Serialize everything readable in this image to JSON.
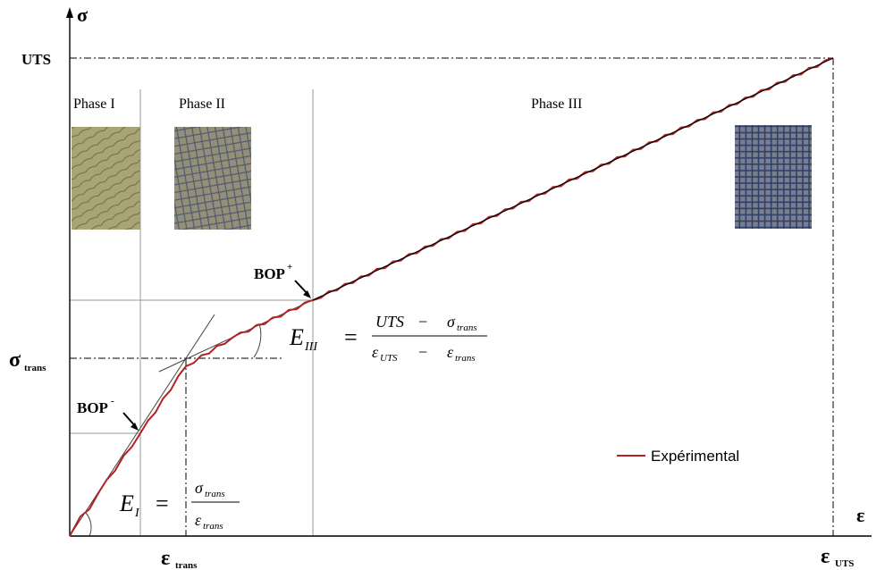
{
  "axes": {
    "y_symbol": "σ",
    "x_symbol": "ε"
  },
  "levels": {
    "uts": "UTS",
    "sigma_trans": {
      "symbol": "σ",
      "sub": "trans"
    },
    "eps_trans": {
      "symbol": "ε",
      "sub": "trans"
    },
    "eps_uts": {
      "symbol": "ε",
      "sub": "UTS"
    }
  },
  "phases": [
    "Phase I",
    "Phase II",
    "Phase III"
  ],
  "points": {
    "bop_plus": {
      "label": "BOP",
      "sup": "+"
    },
    "bop_minus": {
      "label": "BOP",
      "sup": "-"
    }
  },
  "formulas": {
    "e3": {
      "lhs": "E",
      "lhs_sub": "III",
      "eq": "=",
      "num_a": "UTS",
      "minus": "−",
      "num_b": "σ",
      "num_b_sub": "trans",
      "den_a": "ε",
      "den_a_sub": "UTS",
      "den_b": "ε",
      "den_b_sub": "trans"
    },
    "e1": {
      "lhs": "E",
      "lhs_sub": "I",
      "eq": "=",
      "num": "σ",
      "num_sub": "trans",
      "den": "ε",
      "den_sub": "trans"
    }
  },
  "legend": {
    "label": "Expérimental",
    "color": "#b22222"
  }
}
